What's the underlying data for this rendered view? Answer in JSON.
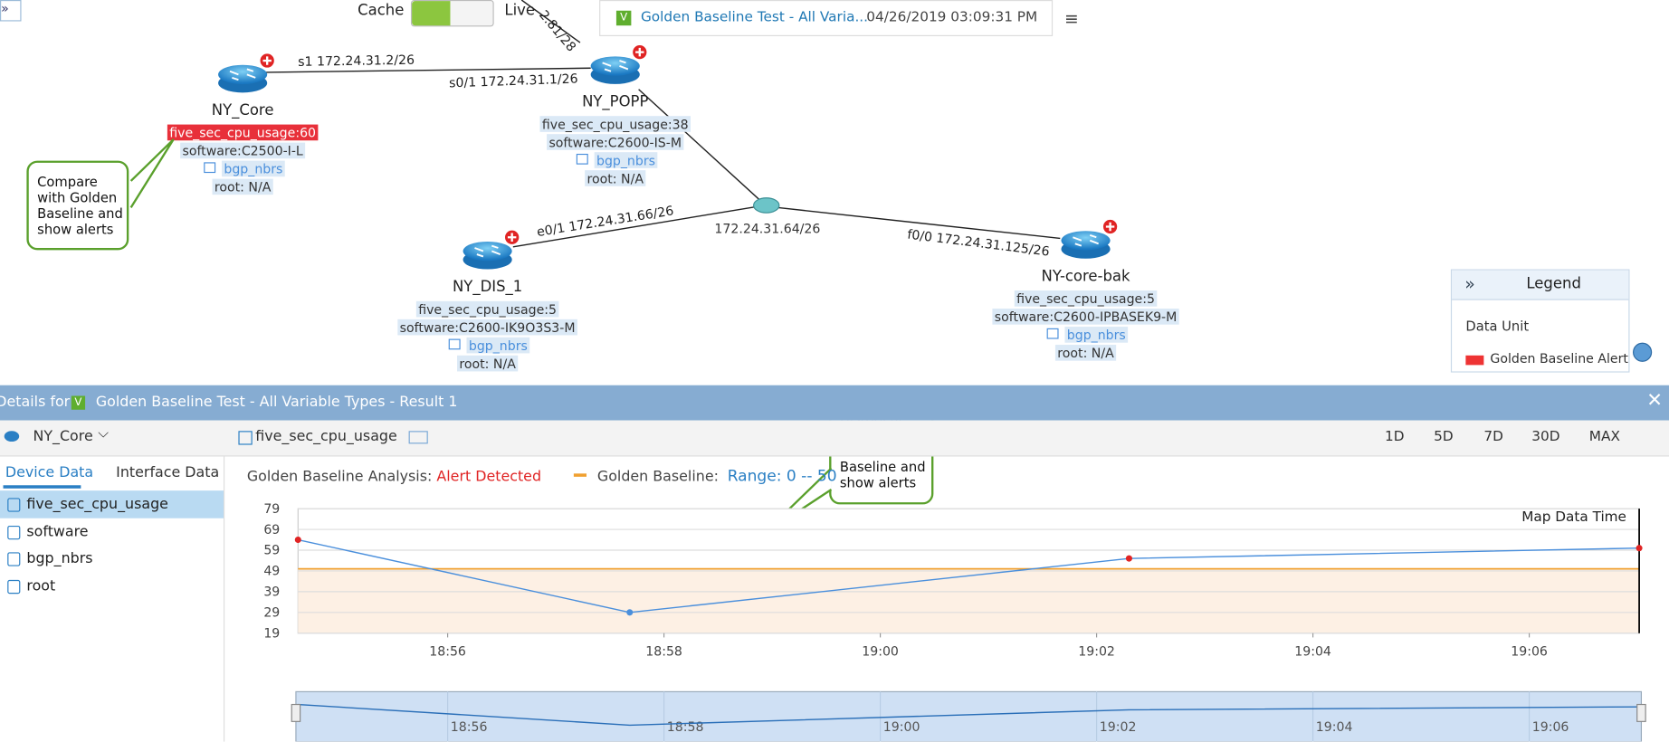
{
  "toolbar": {
    "cache": "Cache",
    "live": "Live",
    "map_title": "Golden Baseline Test - All Varia...",
    "map_time": "04/26/2019 03:09:31 PM"
  },
  "map": {
    "links": [
      "s1 172.24.31.2/26",
      "s0/1 172.24.31.1/26",
      "e0/1 172.24.31.66/26",
      "f0/0 172.24.31.125/26",
      "2.81/28"
    ],
    "hub": "172.24.31.64/26",
    "nodes": [
      {
        "name": "NY_Core",
        "cpu": "five_sec_cpu_usage:60",
        "software": "software:C2500-I-L",
        "table": "bgp_nbrs",
        "root": "root: N/A"
      },
      {
        "name": "NY_POPP",
        "cpu": "five_sec_cpu_usage:38",
        "software": "software:C2600-IS-M",
        "table": "bgp_nbrs",
        "root": "root: N/A"
      },
      {
        "name": "NY_DIS_1",
        "cpu": "five_sec_cpu_usage:5",
        "software": "software:C2600-IK9O3S3-M",
        "table": "bgp_nbrs",
        "root": "root: N/A"
      },
      {
        "name": "NY-core-bak",
        "cpu": "five_sec_cpu_usage:5",
        "software": "software:C2600-IPBASEK9-M",
        "table": "bgp_nbrs",
        "root": "root: N/A"
      }
    ]
  },
  "callouts": [
    "Compare with Golden Baseline and show alerts",
    "Historical data analysis with Golden Baseline and show alerts"
  ],
  "legend": {
    "title": "Legend",
    "items": [
      "Data Unit",
      "Golden Baseline Alert"
    ]
  },
  "details": {
    "label": "Details for",
    "title": "Golden Baseline Test - All Variable Types - Result 1",
    "device": "NY_Core",
    "variable": "five_sec_cpu_usage",
    "ranges": [
      "1D",
      "5D",
      "7D",
      "30D",
      "MAX"
    ],
    "tabs": [
      "Device Data",
      "Interface Data"
    ],
    "variables": [
      "five_sec_cpu_usage",
      "software",
      "bgp_nbrs",
      "root"
    ],
    "analysis_label": "Golden Baseline Analysis:",
    "analysis_status": "Alert Detected",
    "baseline_label": "Golden Baseline:",
    "baseline_range": "Range: 0 -- 50"
  },
  "chart_data": {
    "type": "line",
    "x": [
      "18:54:37",
      "18:57:41",
      "19:02:18",
      "19:07:01"
    ],
    "values": [
      64,
      29,
      55,
      60
    ],
    "color": "#4a8fdc",
    "alert_color": "#e02424",
    "baseline": [
      0,
      50
    ],
    "baseline_color": "#f0a030",
    "band_color": "#fdf0e4",
    "xlim": [
      "18:54:37",
      "19:07:01"
    ],
    "xticks": [
      "18:56",
      "18:58",
      "19:00",
      "19:02",
      "19:04",
      "19:06"
    ],
    "ylim": [
      19,
      79
    ],
    "yticks": [
      19,
      29,
      39,
      49,
      59,
      69,
      79
    ],
    "grid": true,
    "annotation": "Map Data Time"
  }
}
